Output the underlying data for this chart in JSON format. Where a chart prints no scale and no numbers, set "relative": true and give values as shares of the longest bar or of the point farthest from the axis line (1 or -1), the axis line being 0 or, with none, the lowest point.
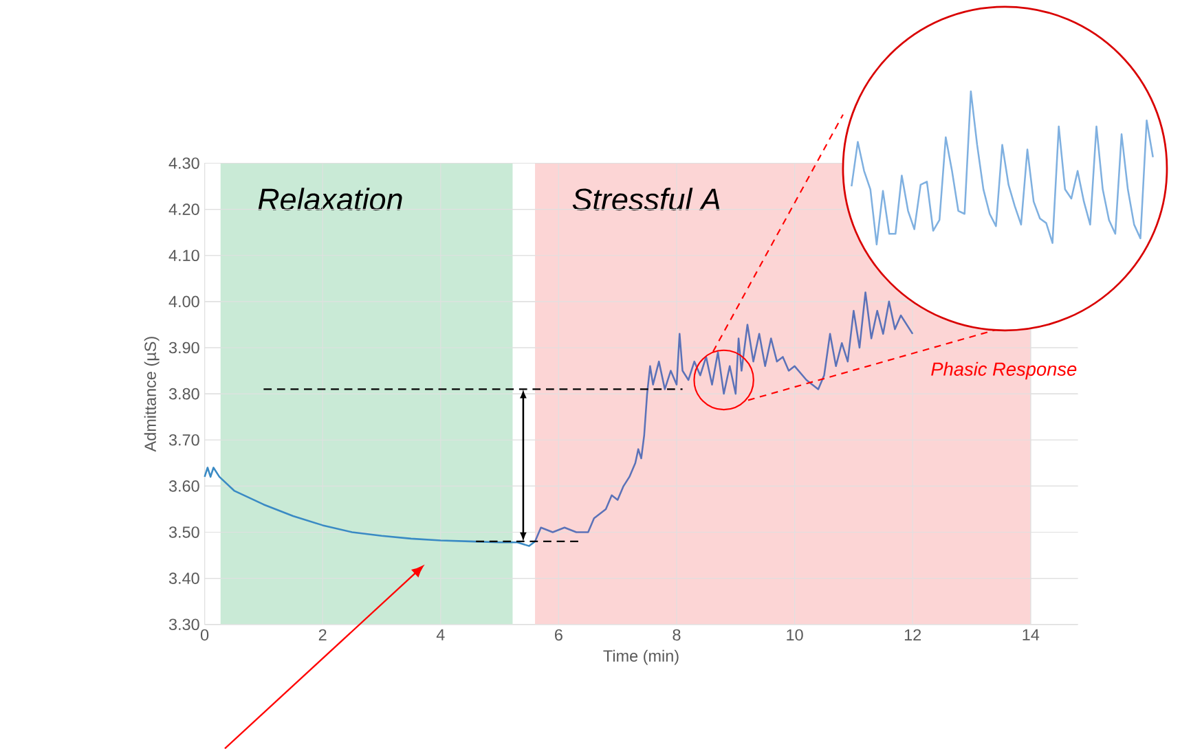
{
  "chart_data": [
    {
      "type": "line",
      "xlabel": "Time (min)",
      "ylabel": "Admittance (µS)",
      "xlim": [
        0,
        14.8
      ],
      "ylim": [
        3.3,
        4.3
      ],
      "xticks": [
        0,
        2,
        4,
        6,
        8,
        10,
        12,
        14
      ],
      "yticks": [
        {
          "value": 3.3,
          "label": "3.30"
        },
        {
          "value": 3.4,
          "label": "3.40"
        },
        {
          "value": 3.5,
          "label": "3.50"
        },
        {
          "value": 3.6,
          "label": "3.60"
        },
        {
          "value": 3.7,
          "label": "3.70"
        },
        {
          "value": 3.8,
          "label": "3.80"
        },
        {
          "value": 3.9,
          "label": "3.90"
        },
        {
          "value": 4.0,
          "label": "4.00"
        },
        {
          "value": 4.1,
          "label": "4.10"
        },
        {
          "value": 4.2,
          "label": "4.20"
        },
        {
          "value": 4.3,
          "label": "4.30"
        }
      ],
      "grid": true,
      "series": [
        {
          "color": "#3a8ac4",
          "x": [
            0,
            0.05,
            0.1,
            0.15,
            0.25,
            0.5,
            1,
            1.5,
            2,
            2.5,
            3,
            3.5,
            4,
            4.5,
            5,
            5.3,
            5.5,
            5.6
          ],
          "values": [
            3.62,
            3.64,
            3.62,
            3.64,
            3.62,
            3.59,
            3.56,
            3.535,
            3.515,
            3.5,
            3.492,
            3.486,
            3.482,
            3.48,
            3.478,
            3.478,
            3.47,
            3.48
          ]
        },
        {
          "color": "#5b72b8",
          "x": [
            5.6,
            5.7,
            5.9,
            6.1,
            6.3,
            6.5,
            6.6,
            6.8,
            6.9,
            7.0,
            7.1,
            7.2,
            7.3,
            7.35,
            7.4,
            7.45,
            7.5,
            7.55,
            7.6,
            7.7,
            7.8,
            7.9,
            8.0,
            8.05,
            8.1,
            8.2,
            8.3,
            8.4,
            8.5,
            8.6,
            8.7,
            8.8,
            8.9,
            9.0,
            9.05,
            9.1,
            9.2,
            9.3,
            9.4,
            9.5,
            9.6,
            9.7,
            9.8,
            9.9,
            10.0,
            10.2,
            10.4,
            10.5,
            10.6,
            10.7,
            10.8,
            10.9,
            11.0,
            11.1,
            11.2,
            11.3,
            11.4,
            11.5,
            11.6,
            11.7,
            11.8,
            11.9,
            12.0
          ],
          "values": [
            3.48,
            3.51,
            3.5,
            3.51,
            3.5,
            3.5,
            3.53,
            3.55,
            3.58,
            3.57,
            3.6,
            3.62,
            3.65,
            3.68,
            3.66,
            3.71,
            3.8,
            3.86,
            3.82,
            3.87,
            3.81,
            3.85,
            3.82,
            3.93,
            3.85,
            3.83,
            3.87,
            3.84,
            3.88,
            3.82,
            3.89,
            3.8,
            3.86,
            3.8,
            3.92,
            3.85,
            3.95,
            3.87,
            3.93,
            3.86,
            3.92,
            3.87,
            3.88,
            3.85,
            3.86,
            3.83,
            3.81,
            3.84,
            3.93,
            3.86,
            3.91,
            3.87,
            3.98,
            3.9,
            4.02,
            3.92,
            3.98,
            3.93,
            4.0,
            3.94,
            3.97,
            3.95,
            3.93
          ]
        }
      ],
      "bands": [
        {
          "axis": "x",
          "from": 0.27,
          "to": 5.22,
          "label": "Relaxation",
          "color": "#c9ead6"
        },
        {
          "axis": "x",
          "from": 5.6,
          "to": 14.0,
          "label": "Stressful A",
          "color": "#fcd5d5"
        }
      ],
      "ref_lines": [
        {
          "axis": "y",
          "value": 3.81,
          "line_style": "dashed",
          "color": "#000000"
        },
        {
          "axis": "y",
          "value": 3.48,
          "line_style": "dashed",
          "color": "#000000"
        }
      ],
      "annotations": [
        "Phasic Response"
      ]
    },
    {
      "type": "line",
      "relative": true,
      "categories": [
        null,
        null,
        null,
        null,
        null,
        null,
        null,
        null,
        null,
        null,
        null,
        null,
        null,
        null,
        null,
        null,
        null,
        null,
        null,
        null,
        null,
        null,
        null,
        null,
        null,
        null,
        null,
        null,
        null,
        null,
        null,
        null,
        null,
        null,
        null,
        null,
        null,
        null,
        null,
        null,
        null,
        null,
        null,
        null,
        null,
        null,
        null,
        null,
        null
      ],
      "series": [
        {
          "color": "#7fb0e0",
          "values": [
            0.38,
            0.67,
            0.48,
            0.36,
            0.0,
            0.35,
            0.07,
            0.07,
            0.45,
            0.22,
            0.1,
            0.39,
            0.41,
            0.09,
            0.16,
            0.7,
            0.48,
            0.22,
            0.2,
            1.0,
            0.65,
            0.36,
            0.2,
            0.12,
            0.65,
            0.39,
            0.25,
            0.13,
            0.62,
            0.28,
            0.17,
            0.14,
            0.01,
            0.77,
            0.36,
            0.3,
            0.48,
            0.28,
            0.13,
            0.77,
            0.36,
            0.16,
            0.07,
            0.72,
            0.36,
            0.13,
            0.04,
            0.81,
            0.57
          ]
        }
      ]
    }
  ]
}
